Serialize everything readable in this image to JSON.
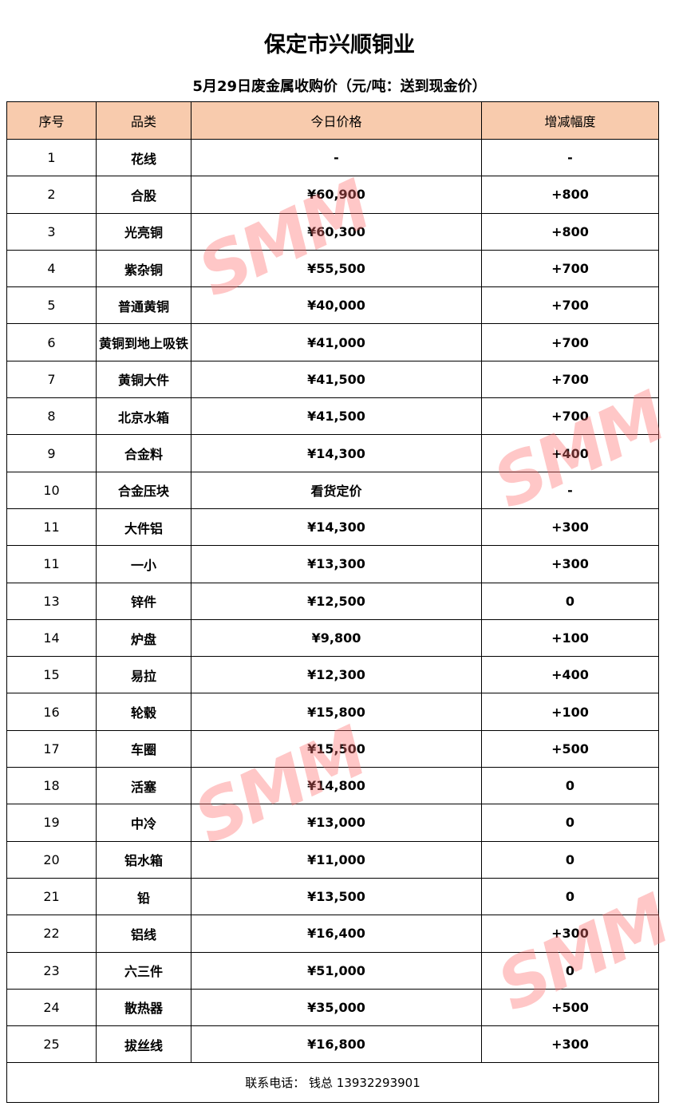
{
  "title": "保定市兴顺铜业",
  "subtitle": "5月29日废金属收购价（元/吨：送到现金价）",
  "columns": [
    "序号",
    "品类",
    "今日价格",
    "增减幅度"
  ],
  "rows": [
    [
      "1",
      "花线",
      "-",
      "-"
    ],
    [
      "2",
      "合股",
      "¥60,900",
      "+800"
    ],
    [
      "3",
      "光亮铜",
      "¥60,300",
      "+800"
    ],
    [
      "4",
      "紫杂铜",
      "¥55,500",
      "+700"
    ],
    [
      "5",
      "普通黄铜",
      "¥40,000",
      "+700"
    ],
    [
      "6",
      "黄铜到地上吸铁",
      "¥41,000",
      "+700"
    ],
    [
      "7",
      "黄铜大件",
      "¥41,500",
      "+700"
    ],
    [
      "8",
      "北京水箱",
      "¥41,500",
      "+700"
    ],
    [
      "9",
      "合金料",
      "¥14,300",
      "+400"
    ],
    [
      "10",
      "合金压块",
      "看货定价",
      "-"
    ],
    [
      "11",
      "大件铝",
      "¥14,300",
      "+300"
    ],
    [
      "11",
      "一小",
      "¥13,300",
      "+300"
    ],
    [
      "13",
      "锌件",
      "¥12,500",
      "0"
    ],
    [
      "14",
      "炉盘",
      "¥9,800",
      "+100"
    ],
    [
      "15",
      "易拉",
      "¥12,300",
      "+400"
    ],
    [
      "16",
      "轮毂",
      "¥15,800",
      "+100"
    ],
    [
      "17",
      "车圈",
      "¥15,500",
      "+500"
    ],
    [
      "18",
      "活塞",
      "¥14,800",
      "0"
    ],
    [
      "19",
      "中冷",
      "¥13,000",
      "0"
    ],
    [
      "20",
      "铝水箱",
      "¥11,000",
      "0"
    ],
    [
      "21",
      "铅",
      "¥13,500",
      "0"
    ],
    [
      "22",
      "铝线",
      "¥16,400",
      "+300"
    ],
    [
      "23",
      "六三件",
      "¥51,000",
      "0"
    ],
    [
      "24",
      "散热器",
      "¥35,000",
      "+500"
    ],
    [
      "25",
      "拔丝线",
      "¥16,800",
      "+300"
    ]
  ],
  "footer": "联系电话：  钱总 13932293901",
  "watermark": "SMM",
  "colors": {
    "header_bg": "#f8cbad",
    "watermark": "#ff6f6f"
  }
}
